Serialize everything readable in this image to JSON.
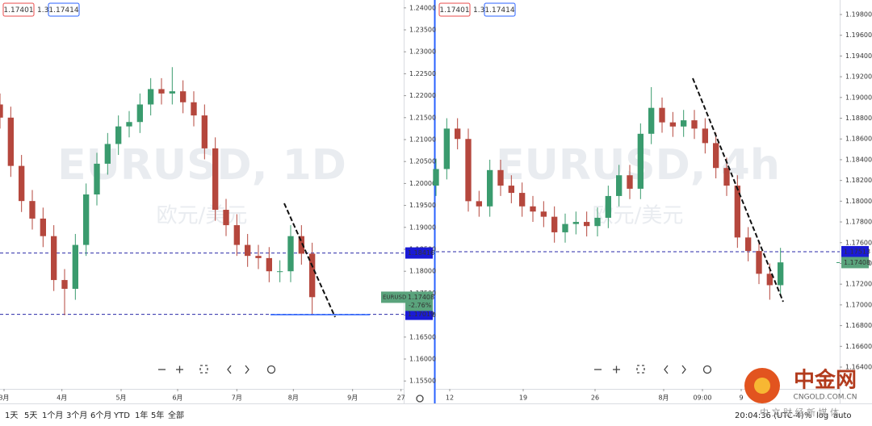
{
  "chart_data": [
    {
      "type": "candlestick",
      "title": "EURUSD, 1D",
      "subtitle": "欧元/美元",
      "legend_values": [
        "1.17401",
        "1.3",
        "1.17414"
      ],
      "up_color": "#3a9b6e",
      "down_color": "#b5473d",
      "x": [
        0,
        4,
        8,
        12,
        16,
        20,
        24,
        28,
        32,
        36,
        40,
        44,
        48,
        52,
        56,
        60,
        64,
        68,
        72,
        76,
        80,
        84,
        88,
        92,
        96,
        100,
        104,
        108,
        112,
        116
      ],
      "open": [
        1.218,
        1.215,
        1.204,
        1.196,
        1.192,
        1.188,
        1.178,
        1.176,
        1.186,
        1.1975,
        1.2045,
        1.209,
        1.213,
        1.214,
        1.218,
        1.2215,
        1.2205,
        1.221,
        1.2185,
        1.2155,
        1.208,
        1.194,
        1.1905,
        1.186,
        1.1835,
        1.183,
        1.18,
        1.18,
        1.188,
        1.184
      ],
      "high": [
        1.2205,
        1.2175,
        1.2065,
        1.1985,
        1.1945,
        1.1905,
        1.1805,
        1.1885,
        1.2,
        1.207,
        1.2115,
        1.2155,
        1.2165,
        1.2205,
        1.224,
        1.224,
        1.2265,
        1.2235,
        1.221,
        1.218,
        1.2105,
        1.1965,
        1.193,
        1.1885,
        1.186,
        1.1855,
        1.1825,
        1.1905,
        1.1905,
        1.1865
      ],
      "low": [
        1.2125,
        1.2015,
        1.1935,
        1.1895,
        1.1855,
        1.1755,
        1.17,
        1.1735,
        1.1835,
        1.195,
        1.202,
        1.2065,
        1.2105,
        1.2115,
        1.2155,
        1.218,
        1.218,
        1.216,
        1.213,
        1.2055,
        1.1915,
        1.188,
        1.1835,
        1.181,
        1.1805,
        1.1775,
        1.1775,
        1.1775,
        1.1815,
        1.17
      ],
      "close": [
        1.215,
        1.204,
        1.196,
        1.192,
        1.188,
        1.178,
        1.176,
        1.186,
        1.1975,
        1.2045,
        1.209,
        1.213,
        1.214,
        1.218,
        1.2215,
        1.2205,
        1.221,
        1.2185,
        1.2155,
        1.208,
        1.194,
        1.1905,
        1.186,
        1.1835,
        1.183,
        1.18,
        1.18,
        1.188,
        1.184,
        1.1741
      ],
      "xlim": [
        0,
        150
      ],
      "xticks": [
        {
          "value": 1.5,
          "label": "3月"
        },
        {
          "value": 23,
          "label": "4月"
        },
        {
          "value": 45,
          "label": "5月"
        },
        {
          "value": 66,
          "label": "6月"
        },
        {
          "value": 88,
          "label": "7月"
        },
        {
          "value": 109,
          "label": "8月"
        },
        {
          "value": 131,
          "label": "9月"
        },
        {
          "value": 149,
          "label": "27"
        }
      ],
      "ylim": [
        1.1532,
        1.2418
      ],
      "yticks": [
        {
          "value": 1.155,
          "label": "1.15500"
        },
        {
          "value": 1.16,
          "label": "1.16000"
        },
        {
          "value": 1.165,
          "label": "1.16500"
        },
        {
          "value": 1.17,
          "label": "1.17000"
        },
        {
          "value": 1.175,
          "label": "1.17500"
        },
        {
          "value": 1.18,
          "label": "1.18000"
        },
        {
          "value": 1.185,
          "label": "1.18500"
        },
        {
          "value": 1.19,
          "label": "1.19000"
        },
        {
          "value": 1.195,
          "label": "1.19500"
        },
        {
          "value": 1.2,
          "label": "1.20000"
        },
        {
          "value": 1.205,
          "label": "1.20500"
        },
        {
          "value": 1.21,
          "label": "1.21000"
        },
        {
          "value": 1.215,
          "label": "1.21500"
        },
        {
          "value": 1.22,
          "label": "1.22000"
        },
        {
          "value": 1.225,
          "label": "1.22500"
        },
        {
          "value": 1.23,
          "label": "1.23000"
        },
        {
          "value": 1.235,
          "label": "1.23500"
        },
        {
          "value": 1.24,
          "label": "1.24000"
        }
      ],
      "hlines": [
        1.18416,
        1.17019
      ],
      "last_price": {
        "symbol": "EURUSD",
        "value": 1.17408,
        "change": "-2.76%"
      }
    },
    {
      "type": "candlestick",
      "title": "EURUSD, 4h",
      "subtitle": "欧元/美元",
      "legend_values": [
        "1.17401",
        "1.3",
        "1.17414"
      ],
      "up_color": "#3a9b6e",
      "down_color": "#b5473d",
      "x": [
        0,
        4,
        8,
        12,
        16,
        20,
        24,
        28,
        32,
        36,
        40,
        44,
        48,
        52,
        56,
        60,
        64,
        68,
        72,
        76,
        80,
        84,
        88,
        92,
        96,
        100,
        104,
        108,
        112,
        116,
        120,
        124,
        128
      ],
      "open": [
        1.1815,
        1.1831,
        1.187,
        1.186,
        1.18,
        1.1795,
        1.183,
        1.1815,
        1.1808,
        1.1795,
        1.179,
        1.1785,
        1.177,
        1.1778,
        1.178,
        1.1776,
        1.1784,
        1.1805,
        1.1825,
        1.1812,
        1.1865,
        1.189,
        1.1876,
        1.1872,
        1.1878,
        1.187,
        1.1856,
        1.1832,
        1.1815,
        1.1765,
        1.1752,
        1.173,
        1.1719
      ],
      "high": [
        1.1841,
        1.188,
        1.188,
        1.187,
        1.181,
        1.184,
        1.184,
        1.1825,
        1.1818,
        1.1805,
        1.18,
        1.1795,
        1.1788,
        1.179,
        1.179,
        1.1794,
        1.1815,
        1.1835,
        1.1835,
        1.1875,
        1.191,
        1.19,
        1.1886,
        1.1888,
        1.1888,
        1.188,
        1.1866,
        1.1842,
        1.1825,
        1.1775,
        1.1762,
        1.174,
        1.1755
      ],
      "low": [
        1.1805,
        1.1821,
        1.185,
        1.179,
        1.1785,
        1.1785,
        1.1805,
        1.1798,
        1.1785,
        1.178,
        1.1775,
        1.176,
        1.176,
        1.1768,
        1.1766,
        1.1766,
        1.1774,
        1.1795,
        1.1802,
        1.1802,
        1.1855,
        1.1866,
        1.1862,
        1.1862,
        1.186,
        1.1846,
        1.1822,
        1.1805,
        1.1755,
        1.1742,
        1.172,
        1.1705,
        1.1709
      ],
      "close": [
        1.1831,
        1.187,
        1.186,
        1.18,
        1.1795,
        1.183,
        1.1815,
        1.1808,
        1.1795,
        1.179,
        1.1785,
        1.177,
        1.1778,
        1.178,
        1.1776,
        1.1784,
        1.1805,
        1.1825,
        1.1812,
        1.1865,
        1.189,
        1.1876,
        1.1872,
        1.1878,
        1.187,
        1.1856,
        1.1832,
        1.1815,
        1.1765,
        1.1752,
        1.173,
        1.1719,
        1.1741
      ],
      "xlim": [
        0,
        150
      ],
      "xticks": [
        {
          "value": 5.1,
          "label": "12"
        },
        {
          "value": 32.4,
          "label": "19"
        },
        {
          "value": 59.1,
          "label": "26"
        },
        {
          "value": 84.6,
          "label": "8月"
        },
        {
          "value": 99,
          "label": "09:00"
        },
        {
          "value": 113.4,
          "label": "9"
        }
      ],
      "ylim": [
        1.1619,
        1.1994
      ],
      "yticks": [
        {
          "value": 1.164,
          "label": "1.16400"
        },
        {
          "value": 1.166,
          "label": "1.16600"
        },
        {
          "value": 1.168,
          "label": "1.16800"
        },
        {
          "value": 1.17,
          "label": "1.17000"
        },
        {
          "value": 1.172,
          "label": "1.17200"
        },
        {
          "value": 1.174,
          "label": "1.17400"
        },
        {
          "value": 1.176,
          "label": "1.17600"
        },
        {
          "value": 1.178,
          "label": "1.17800"
        },
        {
          "value": 1.18,
          "label": "1.18000"
        },
        {
          "value": 1.182,
          "label": "1.18200"
        },
        {
          "value": 1.184,
          "label": "1.18400"
        },
        {
          "value": 1.186,
          "label": "1.18600"
        },
        {
          "value": 1.188,
          "label": "1.18800"
        },
        {
          "value": 1.19,
          "label": "1.19000"
        },
        {
          "value": 1.192,
          "label": "1.19200"
        },
        {
          "value": 1.194,
          "label": "1.19400"
        },
        {
          "value": 1.196,
          "label": "1.19600"
        },
        {
          "value": 1.198,
          "label": "1.19800"
        }
      ],
      "hlines": [
        1.17513
      ],
      "last_price": {
        "value": 1.17408
      }
    }
  ],
  "toolbar": {
    "ranges": [
      "1天",
      "5天",
      "1个月",
      "3个月",
      "6个月",
      "YTD",
      "1年",
      "5年",
      "全部"
    ],
    "time": "20:04:36 (UTC-4)",
    "options": [
      "%",
      "log",
      "auto"
    ]
  },
  "logo": {
    "name": "中金网",
    "url": "CNGOLD.COM.CN",
    "slogan": "中 文 财 经 新 媒 体"
  }
}
